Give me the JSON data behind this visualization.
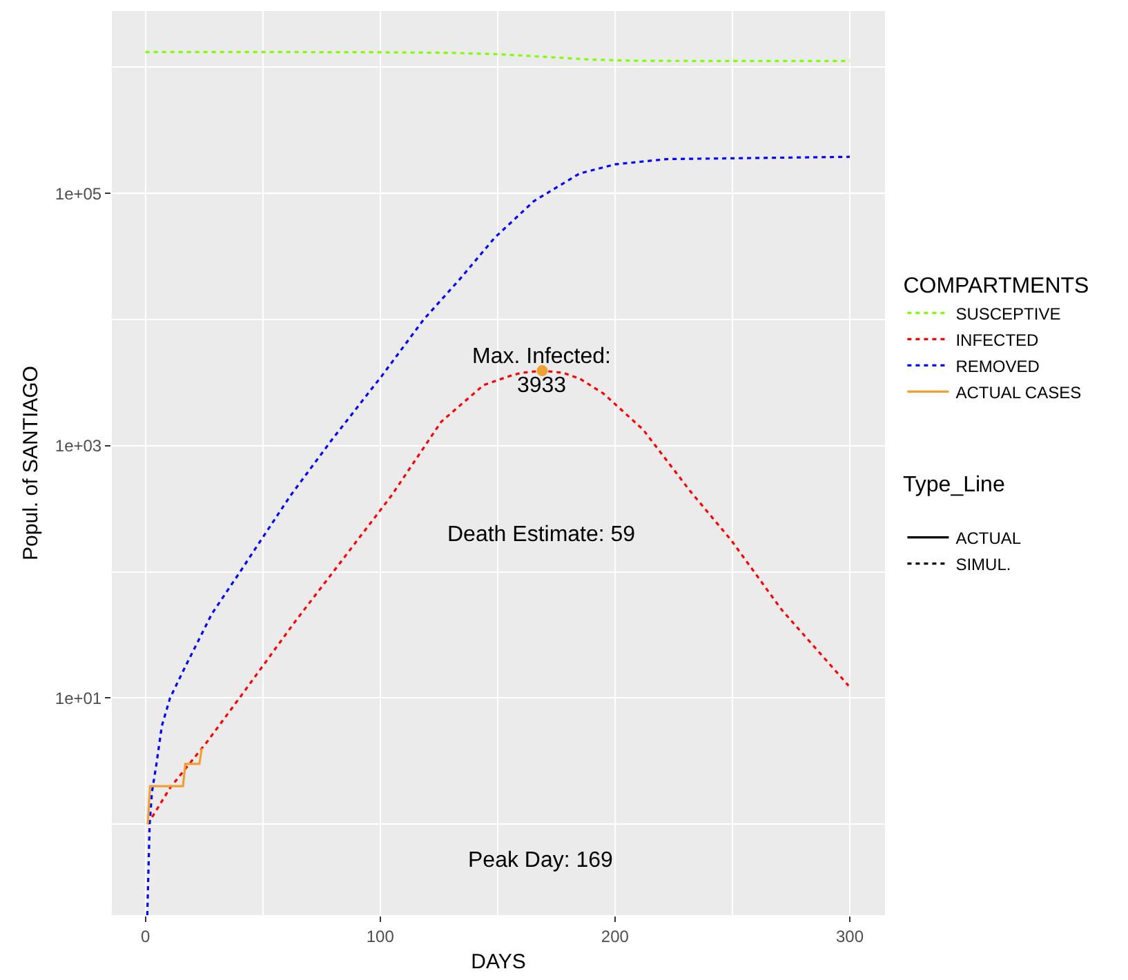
{
  "chart_data": {
    "type": "line",
    "xlabel": "DAYS",
    "ylabel": "Popul. of SANTIAGO",
    "legend_title": "COMPARTMENTS",
    "log": "y",
    "grid": true,
    "legend": "right",
    "xlim": [
      -14.3,
      315
    ],
    "xticks": [
      0,
      {
        "value": 50,
        "label": null
      },
      100,
      {
        "value": 150,
        "label": null
      },
      200,
      {
        "value": 250,
        "label": null
      },
      300
    ],
    "ylim": [
      0.19,
      2790000
    ],
    "yticks": [
      {
        "value": 1,
        "label": null
      },
      {
        "value": 10,
        "label": "1e+01"
      },
      {
        "value": 100,
        "label": null
      },
      {
        "value": 1000,
        "label": "1e+03"
      },
      {
        "value": 10000,
        "label": null
      },
      {
        "value": 100000,
        "label": "1e+05"
      },
      {
        "value": 1000000,
        "label": null
      }
    ],
    "series": [
      {
        "name": "SUSCEPTIVE",
        "color": "#80ff00",
        "line_style": "dotted",
        "x": [
          0,
          60,
          100,
          130,
          150,
          170,
          190,
          210,
          250,
          300
        ],
        "values": [
          1320000,
          1320000,
          1315000,
          1300000,
          1270000,
          1210000,
          1150000,
          1125000,
          1120000,
          1120000
        ]
      },
      {
        "name": "INFECTED",
        "color": "#ff0000",
        "line_style": "dotted",
        "x": [
          1,
          10.6,
          26.3,
          42,
          63.6,
          81.2,
          104.7,
          126,
          144,
          155,
          160,
          169,
          178,
          185,
          195,
          212,
          232,
          249.6,
          271,
          299.5
        ],
        "values": [
          1,
          1.95,
          4.5,
          11.2,
          40,
          107,
          400,
          1550,
          3020,
          3560,
          3780,
          3933,
          3780,
          3400,
          2600,
          1340,
          437,
          177,
          50,
          12.5
        ]
      },
      {
        "name": "REMOVED",
        "color": "#0000ff",
        "line_style": "dotted",
        "x": [
          0.8,
          1.8,
          2.8,
          4.7,
          7,
          10.5,
          16.5,
          28.3,
          40,
          61.7,
          79.2,
          100.8,
          118.5,
          134,
          148.8,
          165.5,
          185,
          200,
          222,
          300
        ],
        "values": [
          0.19,
          1,
          1.8,
          3,
          6,
          10,
          17,
          46.5,
          98,
          400,
          1100,
          3600,
          10000,
          21000,
          44600,
          87000,
          144000,
          170000,
          187000,
          195000
        ]
      },
      {
        "name": "ACTUAL CASES",
        "color": "#f0a030",
        "line_style": "solid",
        "x": [
          1,
          2,
          16,
          17,
          23,
          24
        ],
        "values": [
          1,
          2,
          2,
          3,
          3,
          4
        ]
      },
      {
        "type": "scatter",
        "color": "#f0a030",
        "marker": "circle",
        "x": [
          169
        ],
        "values": [
          3933
        ]
      },
      {
        "name": "ACTUAL",
        "color": "#000000",
        "line_style": "solid"
      },
      {
        "name": "SIMUL.",
        "color": "#000000",
        "line_style": "dotted"
      }
    ],
    "annotations": [
      {
        "text": "Max. Infected:\n3933",
        "x": 169,
        "y": 3933
      },
      "Death Estimate: 59",
      "Peak Day: 169",
      "Type_Line"
    ]
  }
}
